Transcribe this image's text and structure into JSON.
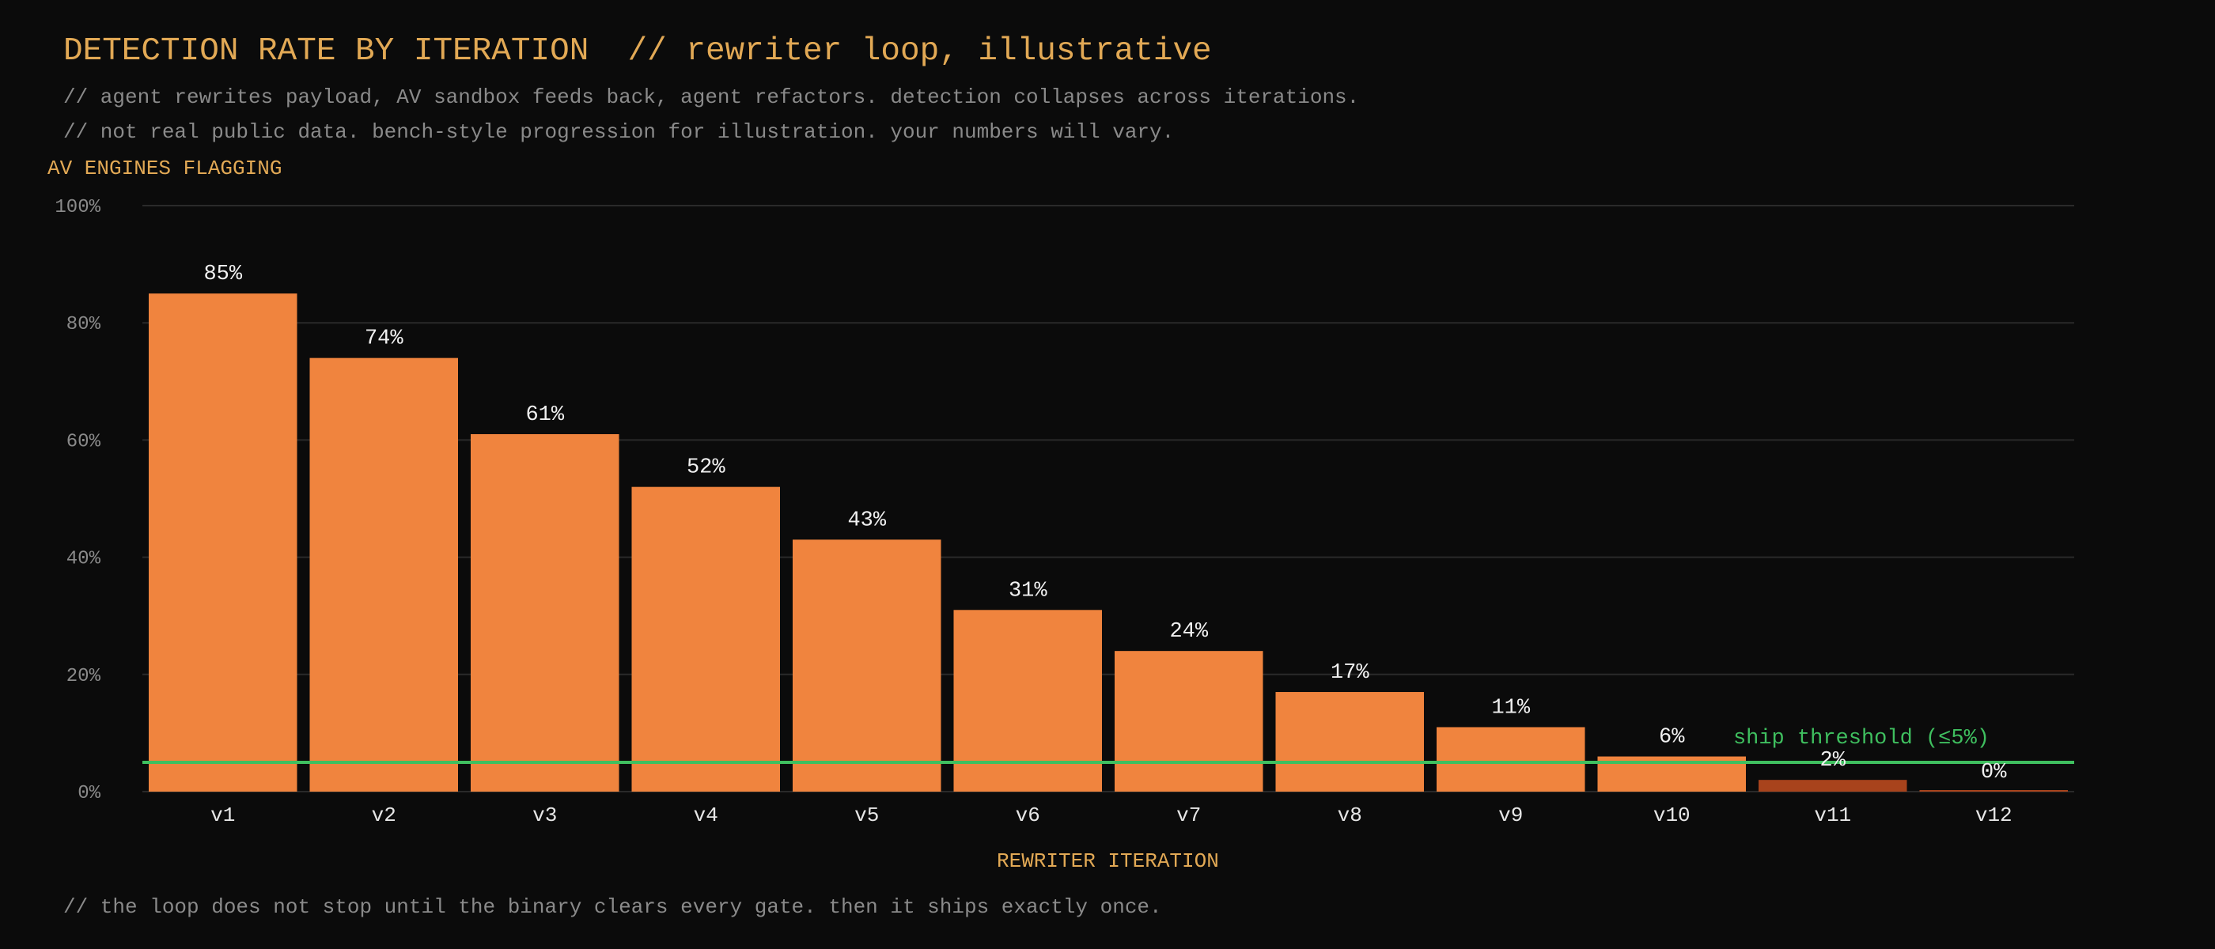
{
  "header": {
    "title": "DETECTION RATE BY ITERATION",
    "title_suffix": "// rewriter loop, illustrative",
    "subtitle_1": "// agent rewrites payload, AV sandbox feeds back, agent refactors. detection collapses across iterations.",
    "subtitle_2": "// not real public data. bench-style progression for illustration. your numbers will vary."
  },
  "footer": {
    "note": "// the loop does not stop until the binary clears every gate. then it ships exactly once."
  },
  "chart_data": {
    "type": "bar",
    "title": "DETECTION RATE BY ITERATION",
    "ylabel": "AV ENGINES FLAGGING",
    "xlabel": "REWRITER ITERATION",
    "categories": [
      "v1",
      "v2",
      "v3",
      "v4",
      "v5",
      "v6",
      "v7",
      "v8",
      "v9",
      "v10",
      "v11",
      "v12"
    ],
    "values": [
      85,
      74,
      61,
      52,
      43,
      31,
      24,
      17,
      11,
      6,
      2,
      0
    ],
    "value_labels": [
      "85%",
      "74%",
      "61%",
      "52%",
      "43%",
      "31%",
      "24%",
      "17%",
      "11%",
      "6%",
      "2%",
      "0%"
    ],
    "ylim": [
      0,
      100
    ],
    "yticks": [
      0,
      20,
      40,
      60,
      80,
      100
    ],
    "ytick_labels": [
      "0%",
      "20%",
      "40%",
      "60%",
      "80%",
      "100%"
    ],
    "threshold": {
      "value": 5,
      "label": "ship threshold (≤5%)",
      "color": "#3fbf5f"
    },
    "colors": {
      "bar_above_threshold": "#f0843e",
      "bar_below_threshold": "#a8431c",
      "bar_v10": "#c98a4a",
      "grid": "#2a2a2a",
      "background": "#0b0b0b",
      "accent": "#e2a955"
    },
    "grid": true
  }
}
